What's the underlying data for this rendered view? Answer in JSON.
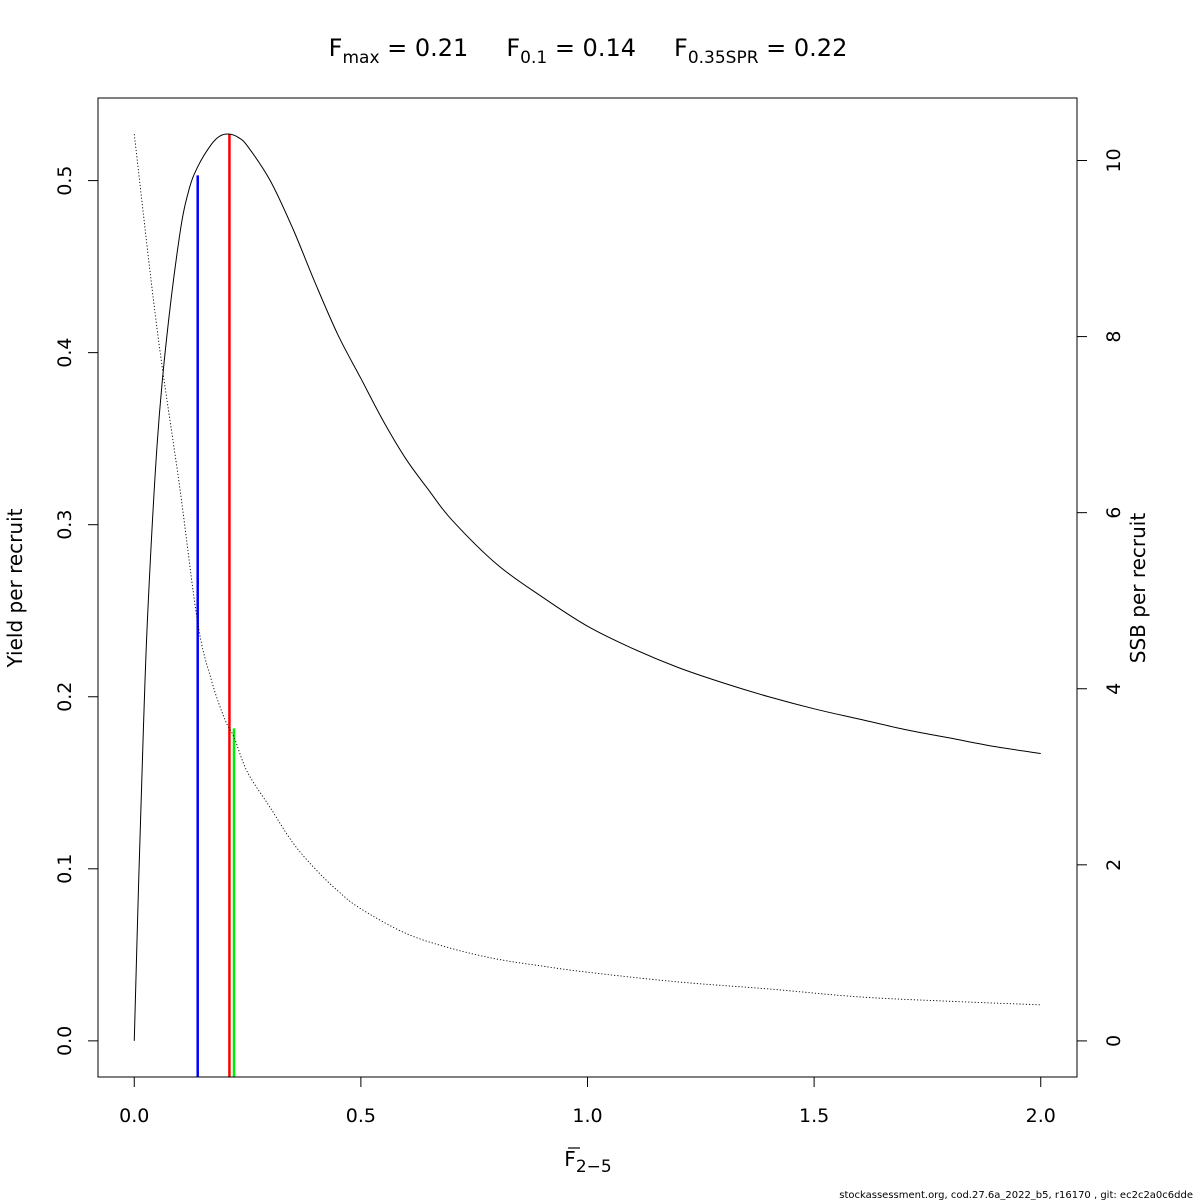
{
  "chart_data": {
    "type": "line",
    "title": {
      "parts": [
        {
          "main": "F",
          "sub": "max",
          "rest": " = 0.21"
        },
        {
          "main": "F",
          "sub": "0.1",
          "rest": " = 0.14"
        },
        {
          "main": "F",
          "sub": "0.35SPR",
          "rest": " = 0.22"
        }
      ]
    },
    "xlabel": {
      "main": "F",
      "sub": "2−5"
    },
    "ylabel_left": "Yield per recruit",
    "ylabel_right": "SSB per recruit",
    "x_ticks": [
      {
        "value": 0.0,
        "label": "0.0"
      },
      {
        "value": 0.5,
        "label": "0.5"
      },
      {
        "value": 1.0,
        "label": "1.0"
      },
      {
        "value": 1.5,
        "label": "1.5"
      },
      {
        "value": 2.0,
        "label": "2.0"
      }
    ],
    "y_left_ticks": [
      {
        "value": 0.0,
        "label": "0.0"
      },
      {
        "value": 0.1,
        "label": "0.1"
      },
      {
        "value": 0.2,
        "label": "0.2"
      },
      {
        "value": 0.3,
        "label": "0.3"
      },
      {
        "value": 0.4,
        "label": "0.4"
      },
      {
        "value": 0.5,
        "label": "0.5"
      }
    ],
    "y_right_ticks": [
      {
        "value": 0,
        "label": "0"
      },
      {
        "value": 2,
        "label": "2"
      },
      {
        "value": 4,
        "label": "4"
      },
      {
        "value": 6,
        "label": "6"
      },
      {
        "value": 8,
        "label": "8"
      },
      {
        "value": 10,
        "label": "10"
      }
    ],
    "xlim": [
      -0.08,
      2.08
    ],
    "ylim_left": [
      -0.021,
      0.548
    ],
    "ylim_right": [
      -0.41,
      10.71
    ],
    "grid": false,
    "legend": "none",
    "series": [
      {
        "role": "yield-per-recruit",
        "axis": "left",
        "style": "solid",
        "color": "#000000",
        "x": [
          0,
          0.01,
          0.02,
          0.03,
          0.05,
          0.07,
          0.1,
          0.12,
          0.14,
          0.17,
          0.19,
          0.21,
          0.23,
          0.25,
          0.3,
          0.35,
          0.4,
          0.45,
          0.5,
          0.55,
          0.6,
          0.65,
          0.7,
          0.8,
          0.9,
          1.0,
          1.1,
          1.2,
          1.3,
          1.4,
          1.5,
          1.6,
          1.7,
          1.8,
          1.9,
          2.0
        ],
        "y": [
          0,
          0.095,
          0.18,
          0.25,
          0.345,
          0.405,
          0.468,
          0.494,
          0.508,
          0.521,
          0.526,
          0.527,
          0.525,
          0.52,
          0.5,
          0.472,
          0.44,
          0.41,
          0.385,
          0.36,
          0.338,
          0.32,
          0.303,
          0.277,
          0.258,
          0.241,
          0.228,
          0.217,
          0.208,
          0.2,
          0.193,
          0.187,
          0.181,
          0.176,
          0.171,
          0.167
        ]
      },
      {
        "role": "ssb-per-recruit",
        "axis": "right",
        "style": "dotted",
        "color": "#000000",
        "x": [
          0,
          0.05,
          0.1,
          0.14,
          0.17,
          0.2,
          0.22,
          0.25,
          0.3,
          0.35,
          0.4,
          0.45,
          0.5,
          0.6,
          0.7,
          0.8,
          0.9,
          1.0,
          1.2,
          1.4,
          1.6,
          1.8,
          2.0
        ],
        "y": [
          10.3,
          8.1,
          6.3,
          4.75,
          4.1,
          3.65,
          3.45,
          3.05,
          2.65,
          2.25,
          1.95,
          1.7,
          1.5,
          1.22,
          1.05,
          0.93,
          0.85,
          0.78,
          0.67,
          0.59,
          0.5,
          0.45,
          0.41
        ]
      }
    ],
    "reference_lines": [
      {
        "role": "f0.1",
        "color": "#0000ff",
        "x": 0.14,
        "axis": "left",
        "y_top": 0.503
      },
      {
        "role": "fmax",
        "color": "#ff0000",
        "x": 0.21,
        "axis": "left",
        "y_top": 0.527
      },
      {
        "role": "f0.35spr",
        "color": "#00ee00",
        "x": 0.22,
        "axis": "right",
        "y_top": 3.55
      }
    ]
  },
  "footer": "stockassessment.org, cod.27.6a_2022_b5, r16170 , git: ec2c2a0c6dde"
}
